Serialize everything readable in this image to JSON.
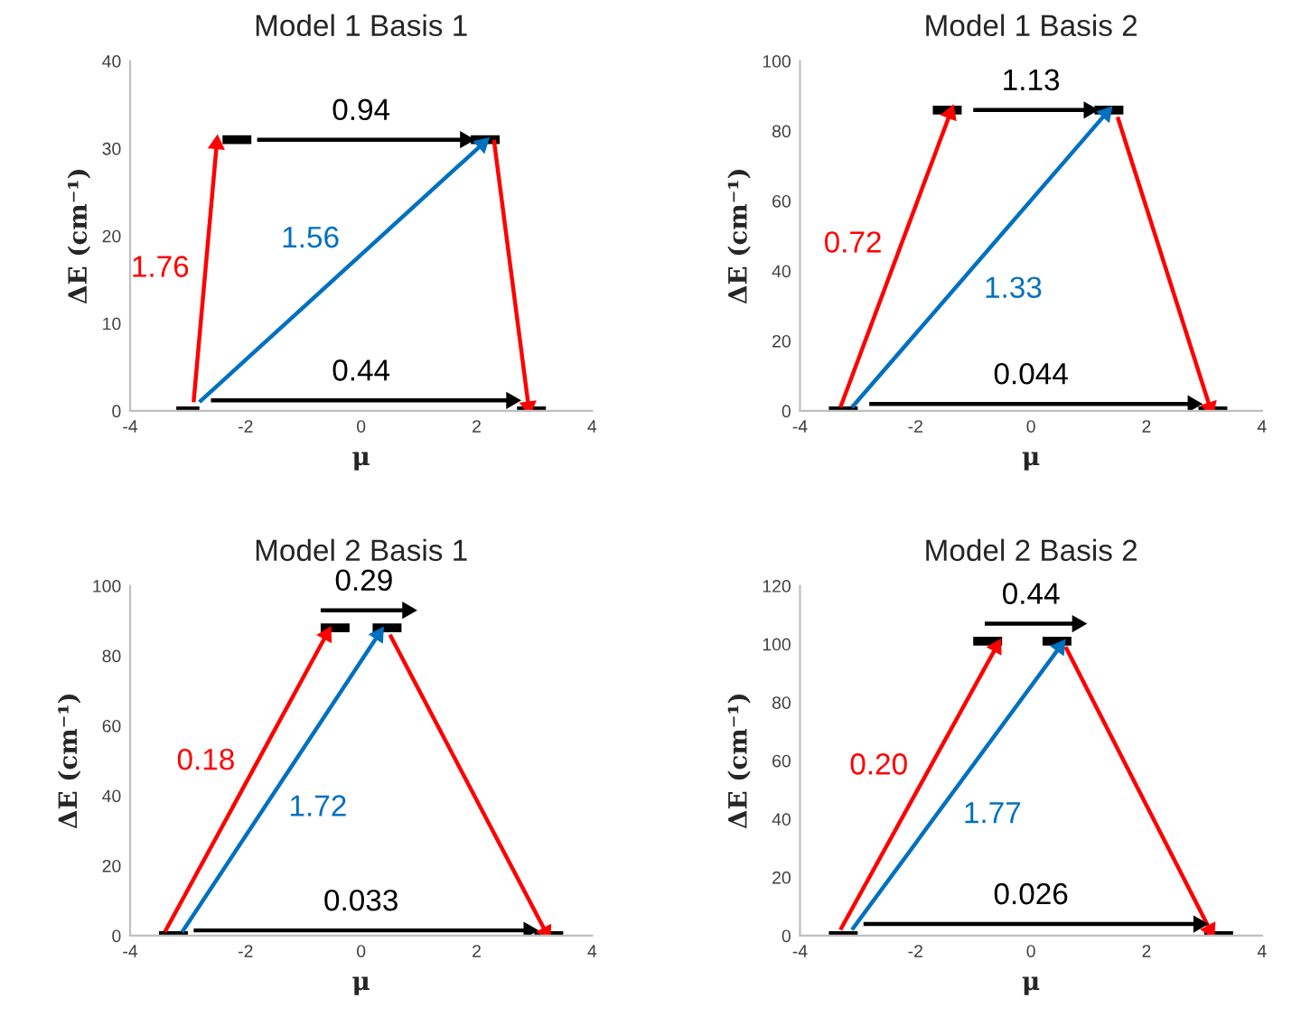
{
  "chart_data": [
    {
      "type": "line",
      "title": "Model 1 Basis 1",
      "xlabel": "μ",
      "ylabel": "ΔE (cm⁻¹)",
      "xlim": [
        -4,
        4
      ],
      "xticks": [
        -4,
        -2,
        0,
        2,
        4
      ],
      "ylim": [
        0,
        40
      ],
      "yticks": [
        0,
        10,
        20,
        30,
        40
      ],
      "series": [
        {
          "color": "#000000",
          "x": [
            -3.2,
            -2.8
          ],
          "values": [
            0,
            0
          ]
        },
        {
          "color": "#000000",
          "x": [
            -2.4,
            -1.9
          ],
          "values": [
            31,
            31
          ]
        },
        {
          "color": "#000000",
          "x": [
            1.9,
            2.4
          ],
          "values": [
            31,
            31
          ]
        },
        {
          "color": "#000000",
          "x": [
            2.7,
            3.2
          ],
          "values": [
            0,
            0
          ]
        },
        {
          "marker": "triangle",
          "color": "#ff0000",
          "x": [
            -2.9,
            -2.5
          ],
          "values": [
            1,
            30.5
          ]
        },
        {
          "marker": "triangle",
          "color": "#0070c0",
          "x": [
            -2.8,
            2.1
          ],
          "values": [
            1,
            30.5
          ]
        },
        {
          "marker": "triangle",
          "color": "#000000",
          "x": [
            -1.8,
            1.8
          ],
          "values": [
            31,
            31
          ]
        },
        {
          "marker": "triangle",
          "color": "#ff0000",
          "x": [
            2.3,
            2.9
          ],
          "values": [
            31,
            0.5
          ]
        },
        {
          "marker": "triangle",
          "color": "#000000",
          "x": [
            -2.6,
            2.6
          ],
          "values": [
            1.2,
            1.2
          ]
        }
      ],
      "annotations": [
        {
          "text": "0.94",
          "x": 0,
          "y": 31
        },
        {
          "text": "1.76",
          "x": -2.7,
          "y": 15.75
        },
        {
          "text": "1.56",
          "x": -0.35,
          "y": 15.75
        },
        {
          "text": "0.44",
          "x": 0,
          "y": 1.2
        }
      ]
    },
    {
      "type": "line",
      "title": "Model 1 Basis 2",
      "xlabel": "μ",
      "ylabel": "ΔE (cm⁻¹)",
      "xlim": [
        -4,
        4
      ],
      "xticks": [
        -4,
        -2,
        0,
        2,
        4
      ],
      "ylim": [
        0,
        100
      ],
      "yticks": [
        0,
        20,
        40,
        60,
        80,
        100
      ],
      "series": [
        {
          "color": "#000000",
          "x": [
            -3.5,
            -3.0
          ],
          "values": [
            0,
            0
          ]
        },
        {
          "color": "#000000",
          "x": [
            -1.7,
            -1.2
          ],
          "values": [
            86,
            86
          ]
        },
        {
          "color": "#000000",
          "x": [
            1.1,
            1.6
          ],
          "values": [
            86,
            86
          ]
        },
        {
          "color": "#000000",
          "x": [
            2.9,
            3.4
          ],
          "values": [
            0,
            0
          ]
        },
        {
          "marker": "triangle",
          "color": "#ff0000",
          "x": [
            -3.3,
            -1.4
          ],
          "values": [
            1,
            85
          ]
        },
        {
          "marker": "triangle",
          "color": "#0070c0",
          "x": [
            -3.1,
            1.3
          ],
          "values": [
            1,
            85
          ]
        },
        {
          "marker": "triangle",
          "color": "#000000",
          "x": [
            -1.0,
            1.0
          ],
          "values": [
            86,
            86
          ]
        },
        {
          "marker": "triangle",
          "color": "#ff0000",
          "x": [
            1.5,
            3.1
          ],
          "values": [
            84,
            1
          ]
        },
        {
          "marker": "triangle",
          "color": "#000000",
          "x": [
            -2.8,
            2.8
          ],
          "values": [
            2,
            2
          ]
        }
      ],
      "annotations": [
        {
          "text": "1.13",
          "x": 0,
          "y": 86
        },
        {
          "text": "0.72",
          "x": -2.35,
          "y": 43
        },
        {
          "text": "1.33",
          "x": -0.9,
          "y": 43
        },
        {
          "text": "0.044",
          "x": 0,
          "y": 2
        }
      ]
    },
    {
      "type": "line",
      "title": "Model 2 Basis 1",
      "xlabel": "μ",
      "ylabel": "ΔE (cm⁻¹)",
      "xlim": [
        -4,
        4
      ],
      "xticks": [
        -4,
        -2,
        0,
        2,
        4
      ],
      "ylim": [
        0,
        100
      ],
      "yticks": [
        0,
        20,
        40,
        60,
        80,
        100
      ],
      "series": [
        {
          "color": "#000000",
          "x": [
            -3.5,
            -3.0
          ],
          "values": [
            0,
            0
          ]
        },
        {
          "color": "#000000",
          "x": [
            -0.7,
            -0.2
          ],
          "values": [
            88,
            88
          ]
        },
        {
          "color": "#000000",
          "x": [
            0.2,
            0.7
          ],
          "values": [
            88,
            88
          ]
        },
        {
          "color": "#000000",
          "x": [
            3.0,
            3.5
          ],
          "values": [
            0,
            0
          ]
        },
        {
          "marker": "triangle",
          "color": "#ff0000",
          "x": [
            -3.4,
            -0.6
          ],
          "values": [
            1,
            86
          ]
        },
        {
          "marker": "triangle",
          "color": "#0070c0",
          "x": [
            -3.1,
            0.3
          ],
          "values": [
            1,
            86
          ]
        },
        {
          "marker": "triangle",
          "color": "#000000",
          "x": [
            -0.7,
            0.8
          ],
          "values": [
            93,
            93
          ]
        },
        {
          "marker": "triangle",
          "color": "#ff0000",
          "x": [
            0.5,
            3.2
          ],
          "values": [
            86,
            1
          ]
        },
        {
          "marker": "triangle",
          "color": "#000000",
          "x": [
            -2.9,
            2.9
          ],
          "values": [
            1.5,
            1.5
          ]
        }
      ],
      "annotations": [
        {
          "text": "0.29",
          "x": 0.05,
          "y": 93
        },
        {
          "text": "0.18",
          "x": -2.0,
          "y": 43.5
        },
        {
          "text": "1.72",
          "x": -1.4,
          "y": 43.5
        },
        {
          "text": "0.033",
          "x": 0,
          "y": 1.5
        }
      ]
    },
    {
      "type": "line",
      "title": "Model 2 Basis 2",
      "xlabel": "μ",
      "ylabel": "ΔE (cm⁻¹)",
      "xlim": [
        -4,
        4
      ],
      "xticks": [
        -4,
        -2,
        0,
        2,
        4
      ],
      "ylim": [
        0,
        120
      ],
      "yticks": [
        0,
        20,
        40,
        60,
        80,
        100,
        120
      ],
      "series": [
        {
          "color": "#000000",
          "x": [
            -3.5,
            -3.0
          ],
          "values": [
            0,
            0
          ]
        },
        {
          "color": "#000000",
          "x": [
            -1.0,
            -0.5
          ],
          "values": [
            101,
            101
          ]
        },
        {
          "color": "#000000",
          "x": [
            0.2,
            0.7
          ],
          "values": [
            101,
            101
          ]
        },
        {
          "color": "#000000",
          "x": [
            3.0,
            3.5
          ],
          "values": [
            0,
            0
          ]
        },
        {
          "marker": "triangle",
          "color": "#ff0000",
          "x": [
            -3.3,
            -0.6
          ],
          "values": [
            2,
            99
          ]
        },
        {
          "marker": "triangle",
          "color": "#0070c0",
          "x": [
            -3.1,
            0.5
          ],
          "values": [
            2,
            99
          ]
        },
        {
          "marker": "triangle",
          "color": "#000000",
          "x": [
            -0.8,
            0.8
          ],
          "values": [
            107,
            107
          ]
        },
        {
          "marker": "triangle",
          "color": "#ff0000",
          "x": [
            0.6,
            3.1
          ],
          "values": [
            99,
            2
          ]
        },
        {
          "marker": "triangle",
          "color": "#000000",
          "x": [
            -2.9,
            2.9
          ],
          "values": [
            4,
            4
          ]
        }
      ],
      "annotations": [
        {
          "text": "0.44",
          "x": 0,
          "y": 107
        },
        {
          "text": "0.20",
          "x": -1.95,
          "y": 50.5
        },
        {
          "text": "1.77",
          "x": -1.3,
          "y": 50.5
        },
        {
          "text": "0.026",
          "x": 0,
          "y": 4
        }
      ]
    }
  ]
}
